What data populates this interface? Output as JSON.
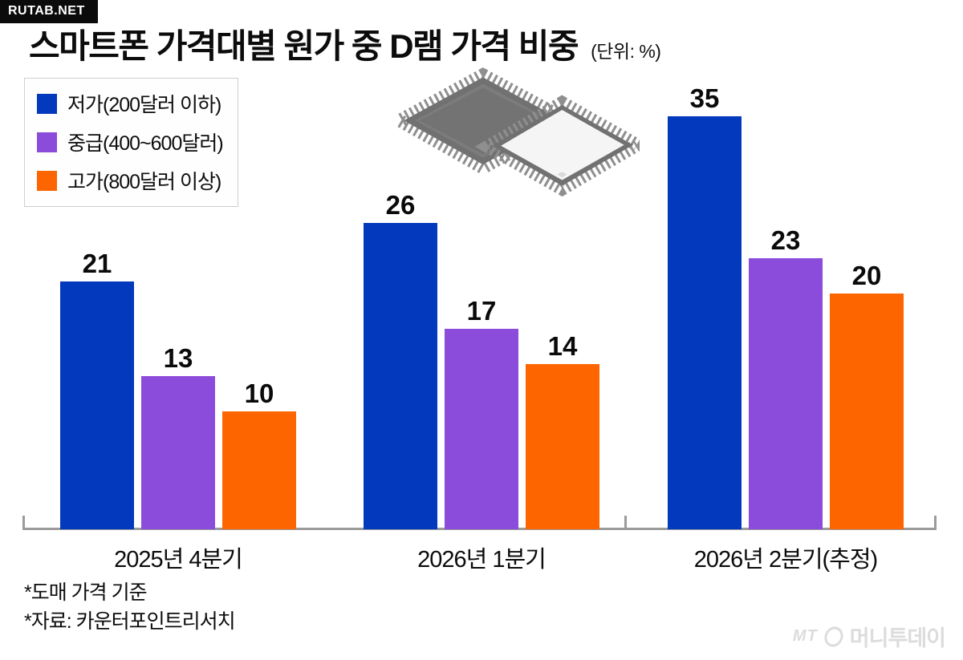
{
  "badge": {
    "label": "RUTAB.NET"
  },
  "title": {
    "text": "스마트폰 가격대별 원가 중 D램 가격 비중",
    "unit": "(단위: %)"
  },
  "chart_data": {
    "type": "bar",
    "title": "스마트폰 가격대별 원가 중 D램 가격 비중",
    "unit": "%",
    "categories": [
      "2025년 4분기",
      "2026년 1분기",
      "2026년 2분기(추정)"
    ],
    "series": [
      {
        "name": "저가(200달러 이하)",
        "color": "#0339bc",
        "values": [
          21,
          26,
          35
        ]
      },
      {
        "name": "중급(400~600달러)",
        "color": "#8b4bdb",
        "values": [
          13,
          17,
          23
        ]
      },
      {
        "name": "고가(800달러 이상)",
        "color": "#fd6500",
        "values": [
          10,
          14,
          20
        ]
      }
    ],
    "ylim": [
      0,
      36
    ],
    "grid": false,
    "legend_position": "top-left",
    "value_labels": true,
    "axis_color": "#9b9b9b"
  },
  "footnotes": [
    "*도매 가격 기준",
    "*자료: 카운터포인트리서치"
  ],
  "watermark": {
    "mt": "MT",
    "name": "머니투데이"
  }
}
